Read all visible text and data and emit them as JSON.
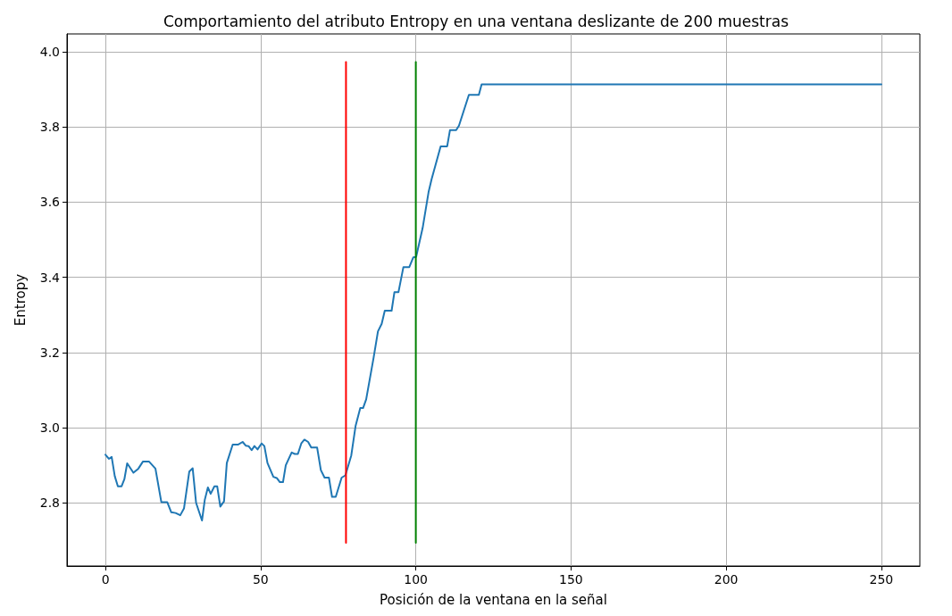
{
  "chart_data": {
    "type": "line",
    "title": "Comportamiento del atributo Entropy en una ventana deslizante de 200 muestras",
    "xlabel": "Posición de la ventana en la señal",
    "ylabel": "Entropy",
    "xlim": [
      -12.4,
      262.4
    ],
    "xticks": [
      0,
      50,
      100,
      150,
      200,
      250
    ],
    "ylim": [
      2.632,
      4.047
    ],
    "yticks": [
      2.8,
      {
        "value": 3,
        "label": "3.0"
      },
      3.2,
      3.4,
      3.6,
      3.8,
      {
        "value": 4,
        "label": "4.0"
      }
    ],
    "grid": true,
    "line_style": "solid",
    "series": [
      {
        "color": "#1f77b4",
        "x": [
          0,
          1.1,
          2,
          3,
          4,
          5.2,
          6.1,
          7,
          9,
          10.6,
          12.1,
          14,
          16.1,
          18,
          19.9,
          21.2,
          22.6,
          24.1,
          25.3,
          27,
          28.1,
          29.2,
          31.1,
          32,
          33,
          33.9,
          35.1,
          36,
          37,
          38.2,
          39.1,
          41,
          42.8,
          44.2,
          45.2,
          46.1,
          47.1,
          48,
          49,
          50.3,
          51.2,
          52.2,
          54.1,
          55.2,
          56.2,
          57.2,
          58.1,
          60,
          61,
          62,
          63.1,
          64.1,
          65.3,
          66.3,
          68.2,
          69.4,
          70.6,
          72,
          73,
          74.2,
          76.1,
          77.3,
          79.2,
          80.6,
          82.1,
          83,
          84,
          86.4,
          87.8,
          89,
          90,
          92.2,
          93.1,
          94.4,
          96,
          97.9,
          99.2,
          100.1,
          102.2,
          104.1,
          105.1,
          108,
          110.1,
          111,
          113,
          113.9,
          117.1,
          120.3,
          121.2,
          250
        ],
        "values": [
          2.928,
          2.917,
          2.922,
          2.871,
          2.844,
          2.844,
          2.863,
          2.905,
          2.88,
          2.891,
          2.91,
          2.91,
          2.891,
          2.802,
          2.802,
          2.775,
          2.773,
          2.767,
          2.785,
          2.883,
          2.892,
          2.8,
          2.753,
          2.808,
          2.841,
          2.824,
          2.844,
          2.844,
          2.79,
          2.804,
          2.906,
          2.955,
          2.955,
          2.962,
          2.952,
          2.951,
          2.94,
          2.951,
          2.942,
          2.958,
          2.951,
          2.906,
          2.869,
          2.866,
          2.855,
          2.855,
          2.9,
          2.934,
          2.93,
          2.93,
          2.958,
          2.968,
          2.962,
          2.947,
          2.947,
          2.887,
          2.867,
          2.867,
          2.816,
          2.816,
          2.867,
          2.873,
          2.926,
          3.005,
          3.052,
          3.052,
          3.075,
          3.186,
          3.256,
          3.276,
          3.311,
          3.311,
          3.36,
          3.36,
          3.427,
          3.427,
          3.453,
          3.454,
          3.531,
          3.626,
          3.661,
          3.748,
          3.748,
          3.791,
          3.791,
          3.803,
          3.885,
          3.885,
          3.913,
          3.913
        ]
      },
      {
        "color": "#ff0000",
        "x": [
          77.5,
          77.5
        ],
        "values": [
          2.694,
          3.972
        ]
      },
      {
        "color": "#008000",
        "x": [
          100,
          100
        ],
        "values": [
          2.694,
          3.972
        ]
      }
    ]
  }
}
